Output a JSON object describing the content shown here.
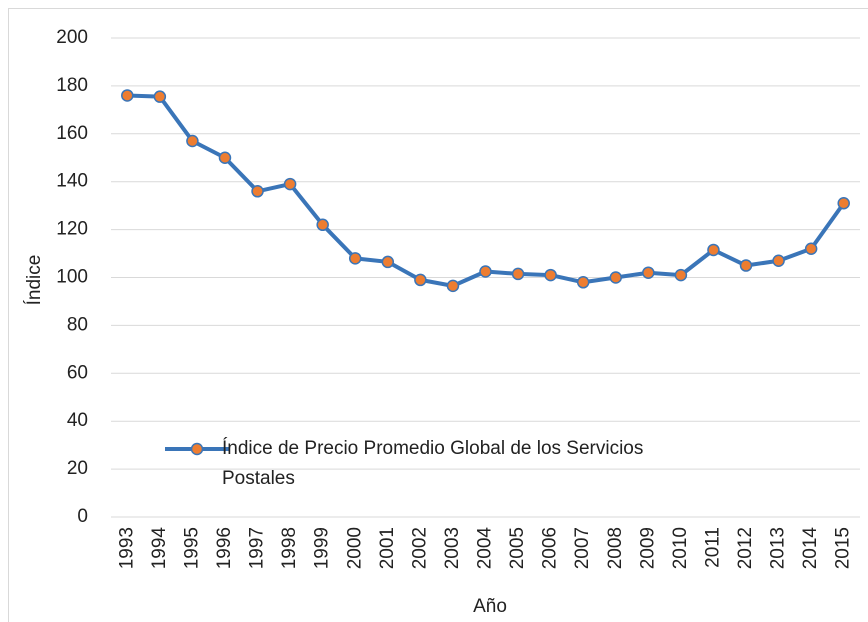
{
  "chart_data": {
    "type": "line",
    "x_label": "Año",
    "y_label": "Índice",
    "categories": [
      "1993",
      "1994",
      "1995",
      "1996",
      "1997",
      "1998",
      "1999",
      "2000",
      "2001",
      "2002",
      "2003",
      "2004",
      "2005",
      "2006",
      "2007",
      "2008",
      "2009",
      "2010",
      "2011",
      "2012",
      "2013",
      "2014",
      "2015"
    ],
    "series": [
      {
        "name": "Índice de Precio Promedio Global de los Servicios Postales",
        "color": "#3a75b8",
        "marker_color": "#ed7d31",
        "values": [
          176,
          175.5,
          157,
          150,
          136,
          139,
          122,
          108,
          106.5,
          99,
          96.5,
          102.5,
          101.5,
          101,
          98,
          100,
          102,
          101,
          111.5,
          105,
          107,
          112,
          131
        ]
      }
    ],
    "ylim": [
      0,
      200
    ],
    "yticks": [
      0,
      20,
      40,
      60,
      80,
      100,
      120,
      140,
      160,
      180,
      200
    ],
    "grid": true
  }
}
